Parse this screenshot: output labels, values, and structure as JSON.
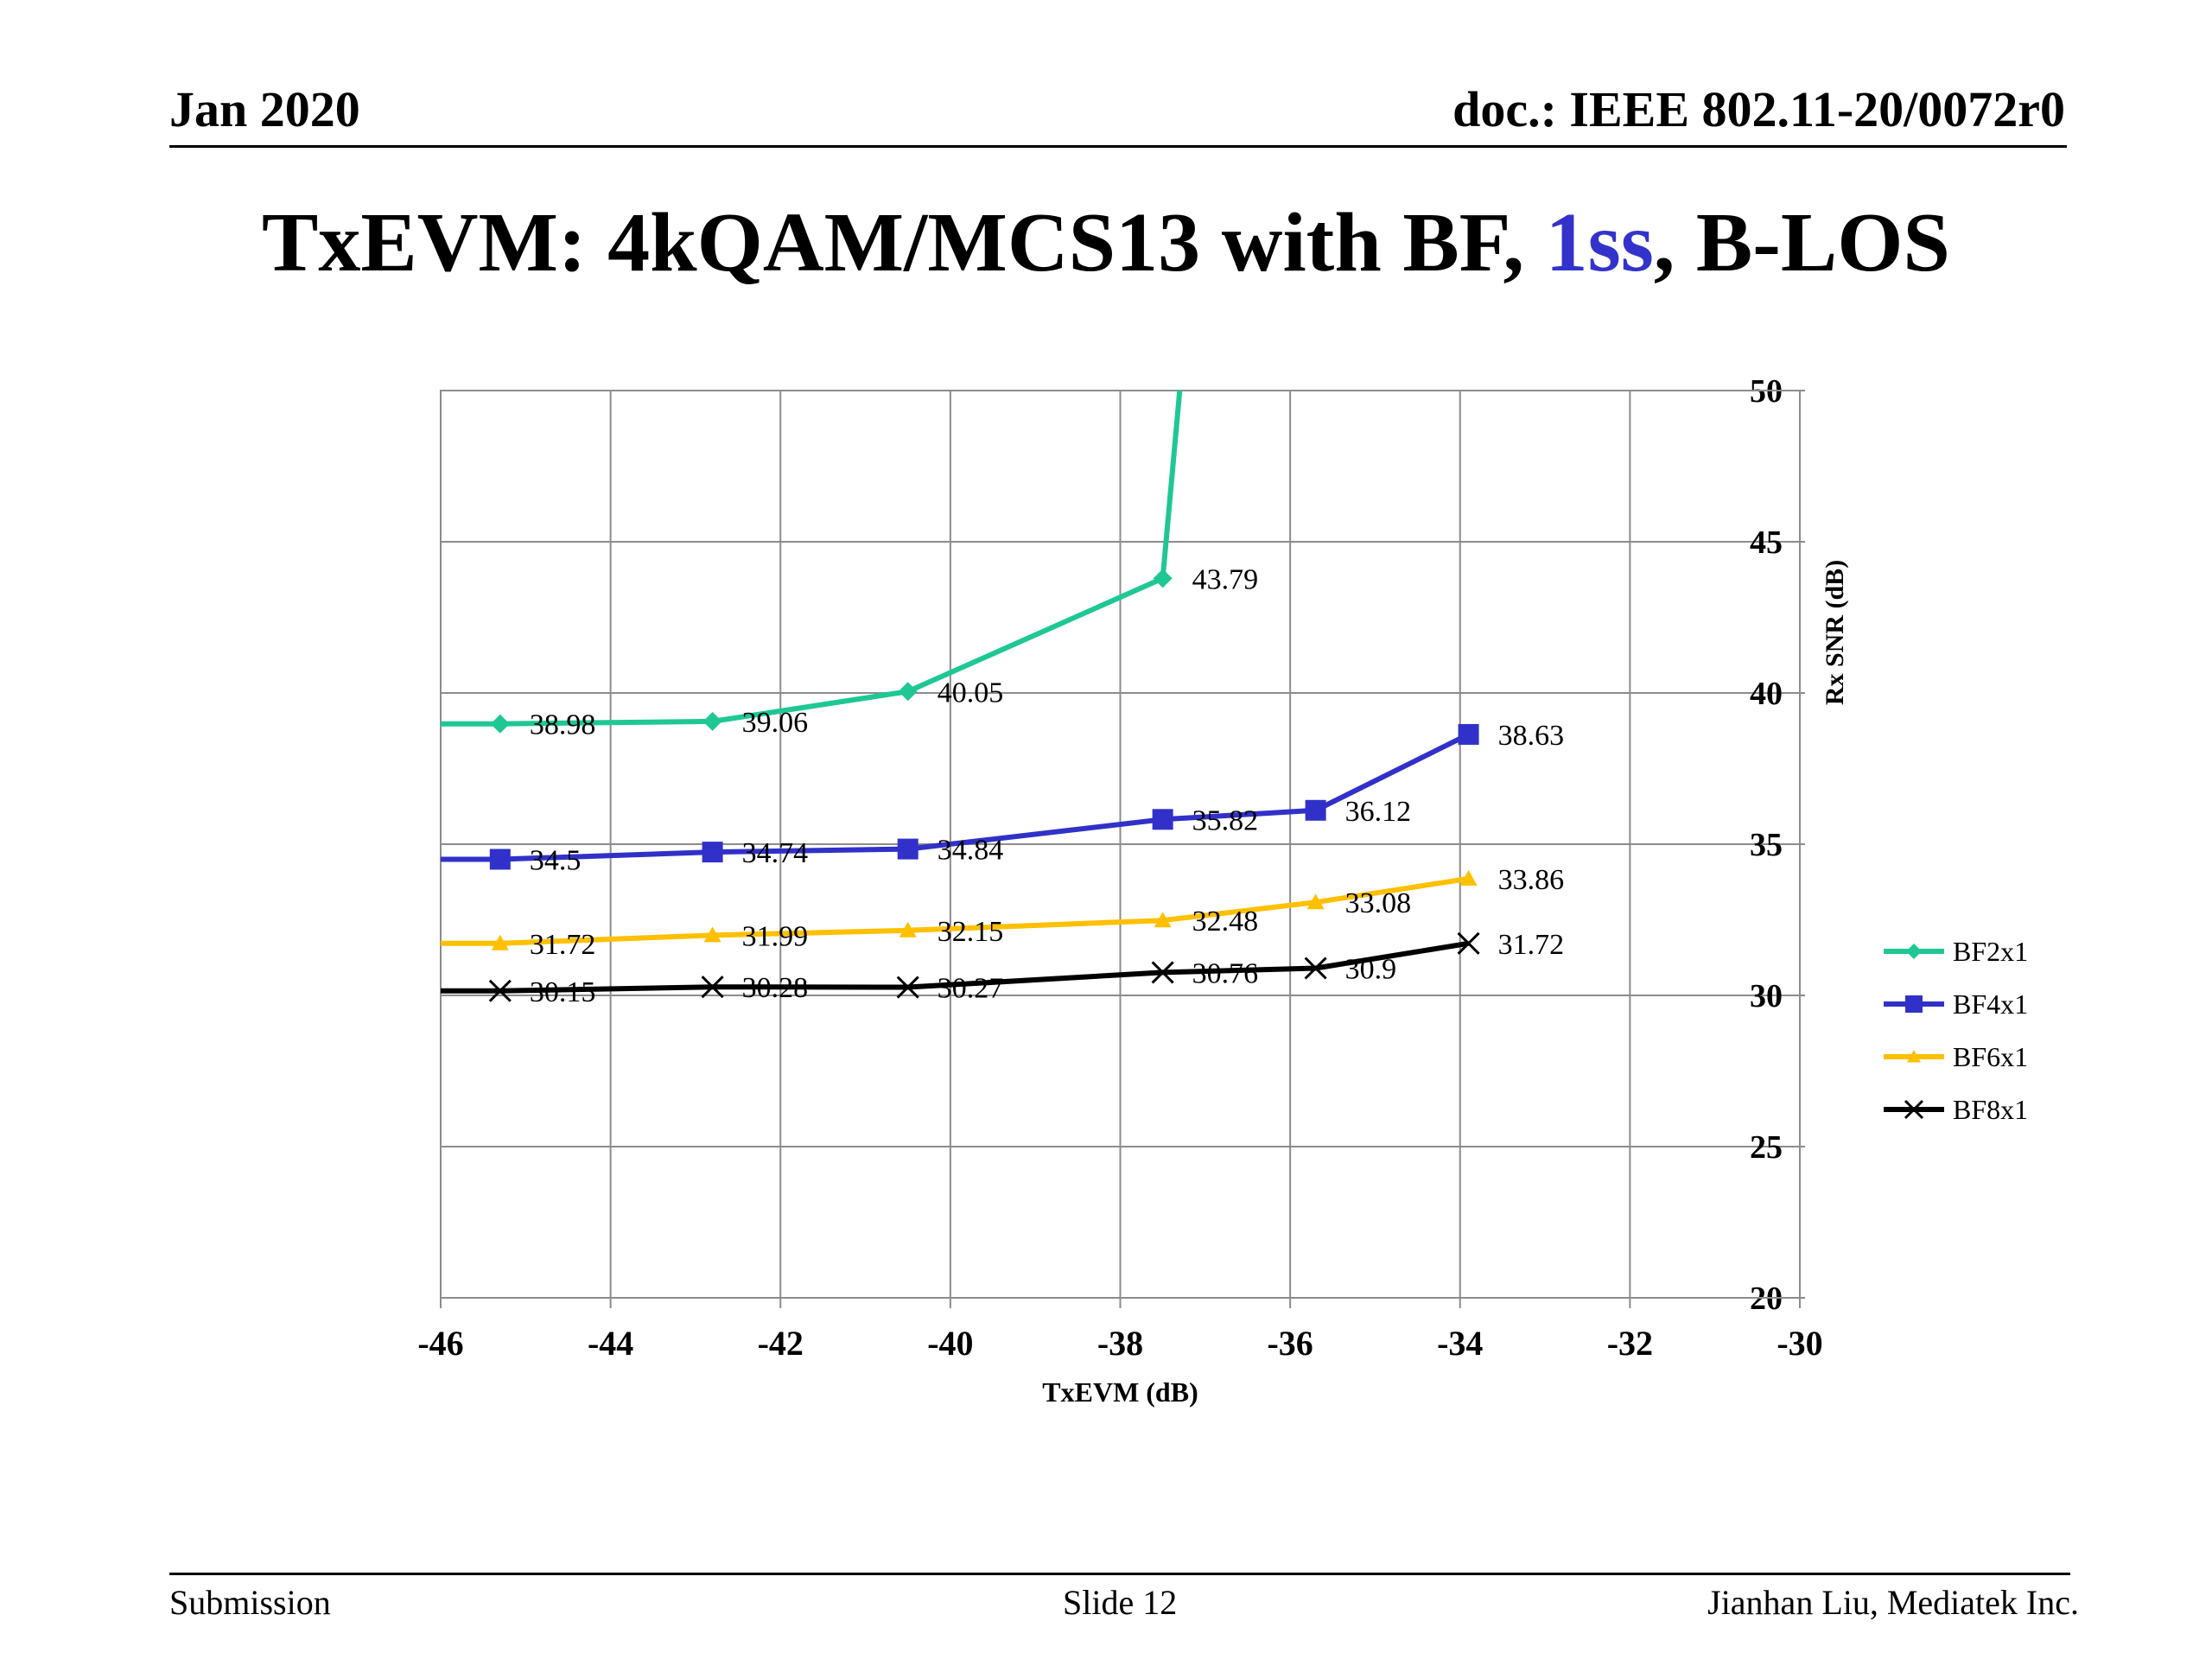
{
  "header": {
    "date": "Jan 2020",
    "doc": "doc.: IEEE 802.11-20/0072r0"
  },
  "title": {
    "prefix": "TxEVM: 4kQAM/MCS13 with BF, ",
    "accent": "1ss",
    "suffix": ", B-LOS",
    "accent_color": "#3333cc"
  },
  "footer": {
    "left": "Submission",
    "center": "Slide 12",
    "right": "Jianhan Liu, Mediatek Inc."
  },
  "chart_data": {
    "type": "line",
    "title": "",
    "xlabel": "TxEVM (dB)",
    "ylabel": "Rx SNR (dB)",
    "xlim": [
      -46,
      -30
    ],
    "ylim": [
      20,
      50
    ],
    "x_ticks": [
      "-46",
      "-44",
      "-42",
      "-40",
      "-38",
      "-36",
      "-34",
      "-32",
      "-30"
    ],
    "y_ticks": [
      "20",
      "25",
      "30",
      "35",
      "40",
      "45",
      "50"
    ],
    "y_axis_side": "right",
    "grid": true,
    "legend_position": "right",
    "series": [
      {
        "name": "BF2x1",
        "color": "#1fc794",
        "marker": "diamond",
        "points": [
          {
            "x": -46,
            "y": 38.98,
            "label": ""
          },
          {
            "x": -45.3,
            "y": 38.98,
            "label": "38.98"
          },
          {
            "x": -42.8,
            "y": 39.06,
            "label": "39.06"
          },
          {
            "x": -40.5,
            "y": 40.05,
            "label": "40.05"
          },
          {
            "x": -37.5,
            "y": 43.79,
            "label": "43.79"
          },
          {
            "x": -37.3,
            "y": 50,
            "label": ""
          }
        ]
      },
      {
        "name": "BF4x1",
        "color": "#3131c9",
        "marker": "square",
        "points": [
          {
            "x": -46,
            "y": 34.5,
            "label": ""
          },
          {
            "x": -45.3,
            "y": 34.5,
            "label": "34.5"
          },
          {
            "x": -42.8,
            "y": 34.74,
            "label": "34.74"
          },
          {
            "x": -40.5,
            "y": 34.84,
            "label": "34.84"
          },
          {
            "x": -37.5,
            "y": 35.82,
            "label": "35.82"
          },
          {
            "x": -35.7,
            "y": 36.12,
            "label": "36.12"
          },
          {
            "x": -33.9,
            "y": 38.63,
            "label": "38.63"
          }
        ]
      },
      {
        "name": "BF6x1",
        "color": "#ffc000",
        "marker": "triangle",
        "points": [
          {
            "x": -46,
            "y": 31.72,
            "label": ""
          },
          {
            "x": -45.3,
            "y": 31.72,
            "label": "31.72"
          },
          {
            "x": -42.8,
            "y": 31.99,
            "label": "31.99"
          },
          {
            "x": -40.5,
            "y": 32.15,
            "label": "32.15"
          },
          {
            "x": -37.5,
            "y": 32.48,
            "label": "32.48"
          },
          {
            "x": -35.7,
            "y": 33.08,
            "label": "33.08"
          },
          {
            "x": -33.9,
            "y": 33.86,
            "label": "33.86"
          }
        ]
      },
      {
        "name": "BF8x1",
        "color": "#000000",
        "marker": "x",
        "points": [
          {
            "x": -46,
            "y": 30.15,
            "label": ""
          },
          {
            "x": -45.3,
            "y": 30.15,
            "label": "30.15"
          },
          {
            "x": -42.8,
            "y": 30.28,
            "label": "30.28"
          },
          {
            "x": -40.5,
            "y": 30.27,
            "label": "30.27"
          },
          {
            "x": -37.5,
            "y": 30.76,
            "label": "30.76"
          },
          {
            "x": -35.7,
            "y": 30.9,
            "label": "30.9"
          },
          {
            "x": -33.9,
            "y": 31.72,
            "label": "31.72"
          }
        ]
      }
    ]
  }
}
